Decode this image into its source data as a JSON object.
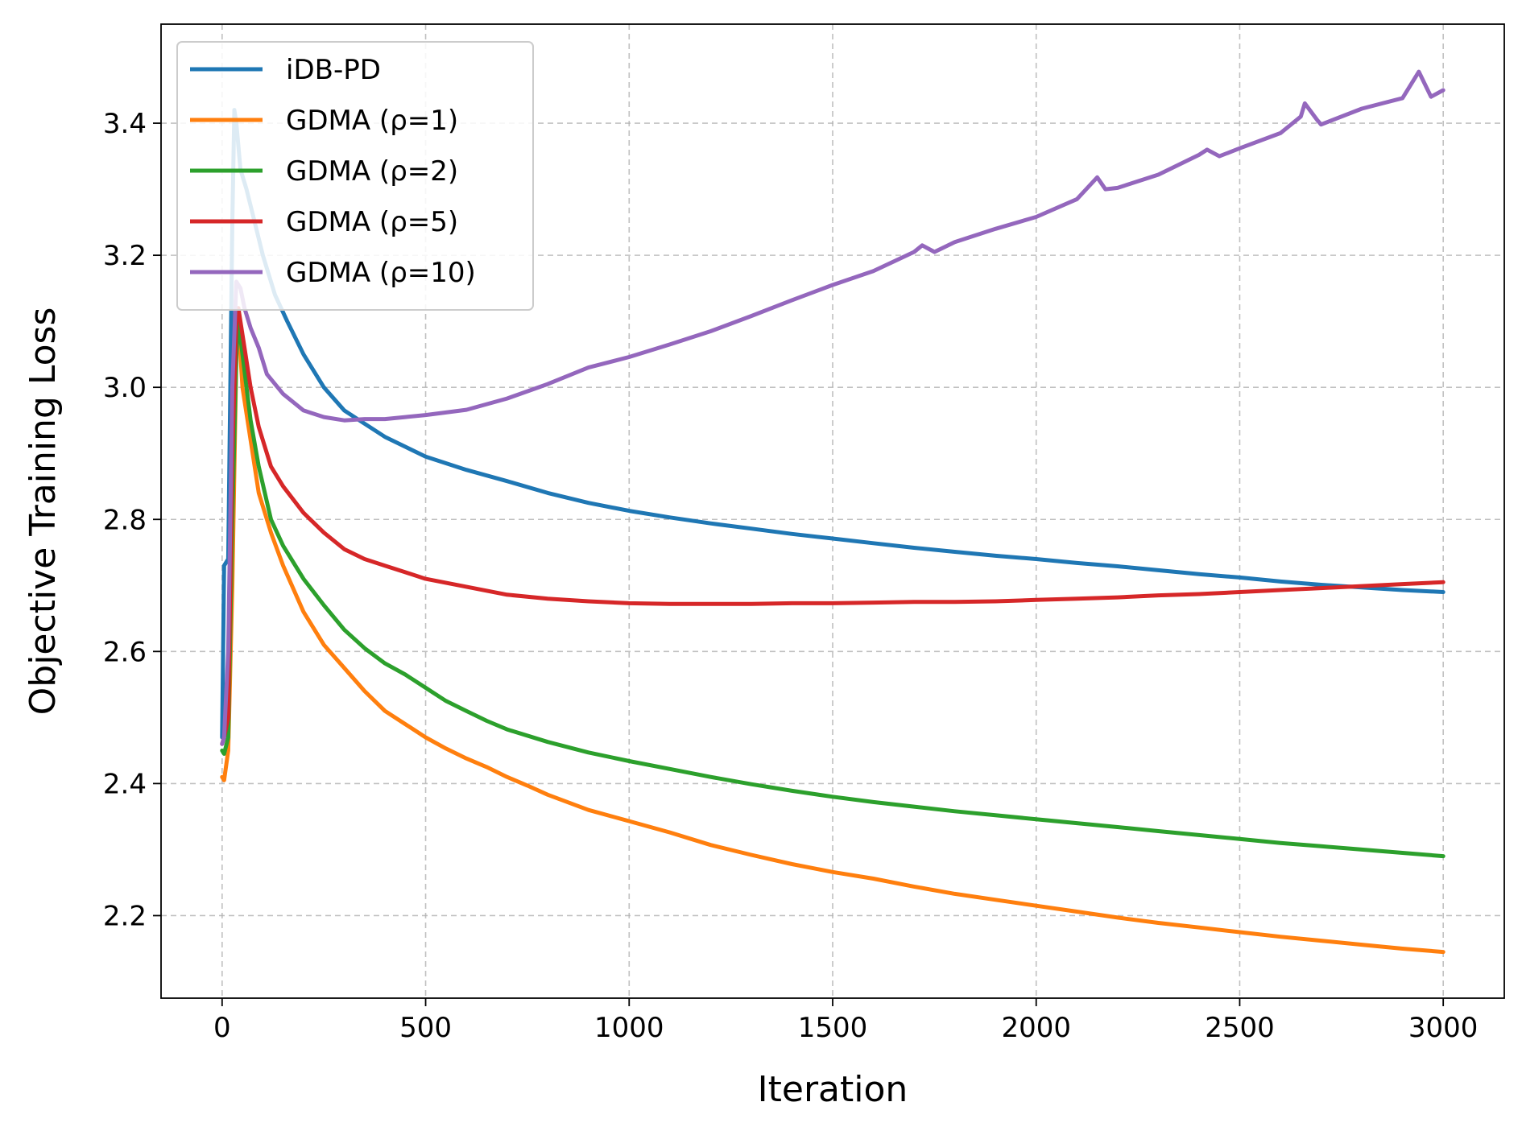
{
  "chart_data": {
    "type": "line",
    "title": "",
    "xlabel": "Iteration",
    "ylabel": "Objective Training Loss",
    "xlim": [
      -150,
      3150
    ],
    "ylim": [
      2.075,
      3.55
    ],
    "xticks": [
      0,
      500,
      1000,
      1500,
      2000,
      2500,
      3000
    ],
    "xtick_labels": [
      "0",
      "500",
      "1000",
      "1500",
      "2000",
      "2500",
      "3000"
    ],
    "yticks": [
      2.2,
      2.4,
      2.6,
      2.8,
      3.0,
      3.2,
      3.4
    ],
    "ytick_labels": [
      "2.2",
      "2.4",
      "2.6",
      "2.8",
      "3.0",
      "3.2",
      "3.4"
    ],
    "grid": true,
    "legend_position": "top-left",
    "series": [
      {
        "name": "iDB-PD",
        "color": "#1f77b4",
        "points": [
          [
            0,
            2.47
          ],
          [
            5,
            2.73
          ],
          [
            15,
            2.74
          ],
          [
            25,
            3.25
          ],
          [
            30,
            3.42
          ],
          [
            35,
            3.4
          ],
          [
            45,
            3.33
          ],
          [
            60,
            3.3
          ],
          [
            80,
            3.25
          ],
          [
            100,
            3.2
          ],
          [
            130,
            3.14
          ],
          [
            160,
            3.1
          ],
          [
            200,
            3.05
          ],
          [
            250,
            3.0
          ],
          [
            300,
            2.965
          ],
          [
            350,
            2.945
          ],
          [
            400,
            2.925
          ],
          [
            450,
            2.91
          ],
          [
            500,
            2.895
          ],
          [
            600,
            2.875
          ],
          [
            700,
            2.858
          ],
          [
            800,
            2.84
          ],
          [
            900,
            2.825
          ],
          [
            1000,
            2.813
          ],
          [
            1100,
            2.803
          ],
          [
            1200,
            2.794
          ],
          [
            1300,
            2.786
          ],
          [
            1400,
            2.778
          ],
          [
            1500,
            2.771
          ],
          [
            1600,
            2.764
          ],
          [
            1700,
            2.757
          ],
          [
            1800,
            2.751
          ],
          [
            1900,
            2.745
          ],
          [
            2000,
            2.74
          ],
          [
            2100,
            2.734
          ],
          [
            2200,
            2.729
          ],
          [
            2300,
            2.723
          ],
          [
            2400,
            2.717
          ],
          [
            2500,
            2.712
          ],
          [
            2600,
            2.706
          ],
          [
            2700,
            2.701
          ],
          [
            2800,
            2.697
          ],
          [
            2900,
            2.693
          ],
          [
            3000,
            2.69
          ]
        ]
      },
      {
        "name": "GDMA (ρ=1)",
        "color": "#ff7f0e",
        "points": [
          [
            0,
            2.41
          ],
          [
            5,
            2.405
          ],
          [
            15,
            2.45
          ],
          [
            25,
            2.7
          ],
          [
            35,
            3.05
          ],
          [
            40,
            3.1
          ],
          [
            50,
            3.0
          ],
          [
            70,
            2.92
          ],
          [
            90,
            2.84
          ],
          [
            120,
            2.78
          ],
          [
            150,
            2.73
          ],
          [
            200,
            2.66
          ],
          [
            250,
            2.61
          ],
          [
            300,
            2.575
          ],
          [
            350,
            2.54
          ],
          [
            400,
            2.51
          ],
          [
            450,
            2.49
          ],
          [
            500,
            2.47
          ],
          [
            550,
            2.453
          ],
          [
            600,
            2.438
          ],
          [
            650,
            2.425
          ],
          [
            700,
            2.41
          ],
          [
            750,
            2.397
          ],
          [
            800,
            2.383
          ],
          [
            900,
            2.36
          ],
          [
            1000,
            2.343
          ],
          [
            1100,
            2.326
          ],
          [
            1200,
            2.307
          ],
          [
            1300,
            2.292
          ],
          [
            1400,
            2.278
          ],
          [
            1500,
            2.266
          ],
          [
            1600,
            2.256
          ],
          [
            1700,
            2.244
          ],
          [
            1800,
            2.233
          ],
          [
            1900,
            2.224
          ],
          [
            2000,
            2.215
          ],
          [
            2100,
            2.206
          ],
          [
            2200,
            2.197
          ],
          [
            2300,
            2.189
          ],
          [
            2400,
            2.182
          ],
          [
            2500,
            2.175
          ],
          [
            2600,
            2.168
          ],
          [
            2700,
            2.162
          ],
          [
            2800,
            2.156
          ],
          [
            2900,
            2.15
          ],
          [
            3000,
            2.145
          ]
        ]
      },
      {
        "name": "GDMA (ρ=2)",
        "color": "#2ca02c",
        "points": [
          [
            0,
            2.45
          ],
          [
            5,
            2.445
          ],
          [
            15,
            2.47
          ],
          [
            25,
            2.8
          ],
          [
            35,
            3.05
          ],
          [
            40,
            3.1
          ],
          [
            50,
            3.05
          ],
          [
            70,
            2.95
          ],
          [
            90,
            2.88
          ],
          [
            120,
            2.8
          ],
          [
            150,
            2.76
          ],
          [
            200,
            2.71
          ],
          [
            250,
            2.67
          ],
          [
            300,
            2.633
          ],
          [
            350,
            2.605
          ],
          [
            400,
            2.582
          ],
          [
            450,
            2.565
          ],
          [
            500,
            2.545
          ],
          [
            550,
            2.525
          ],
          [
            600,
            2.51
          ],
          [
            650,
            2.495
          ],
          [
            700,
            2.482
          ],
          [
            800,
            2.463
          ],
          [
            900,
            2.447
          ],
          [
            1000,
            2.434
          ],
          [
            1100,
            2.422
          ],
          [
            1200,
            2.41
          ],
          [
            1300,
            2.399
          ],
          [
            1400,
            2.389
          ],
          [
            1500,
            2.38
          ],
          [
            1600,
            2.372
          ],
          [
            1700,
            2.365
          ],
          [
            1800,
            2.358
          ],
          [
            1900,
            2.352
          ],
          [
            2000,
            2.346
          ],
          [
            2100,
            2.34
          ],
          [
            2200,
            2.334
          ],
          [
            2300,
            2.328
          ],
          [
            2400,
            2.322
          ],
          [
            2500,
            2.316
          ],
          [
            2600,
            2.31
          ],
          [
            2700,
            2.305
          ],
          [
            2800,
            2.3
          ],
          [
            2900,
            2.295
          ],
          [
            3000,
            2.29
          ]
        ]
      },
      {
        "name": "GDMA (ρ=5)",
        "color": "#d62728",
        "points": [
          [
            0,
            2.46
          ],
          [
            5,
            2.47
          ],
          [
            15,
            2.5
          ],
          [
            25,
            2.9
          ],
          [
            35,
            3.1
          ],
          [
            40,
            3.12
          ],
          [
            50,
            3.08
          ],
          [
            70,
            3.0
          ],
          [
            90,
            2.94
          ],
          [
            120,
            2.88
          ],
          [
            150,
            2.85
          ],
          [
            200,
            2.81
          ],
          [
            250,
            2.78
          ],
          [
            300,
            2.755
          ],
          [
            350,
            2.74
          ],
          [
            400,
            2.73
          ],
          [
            450,
            2.72
          ],
          [
            500,
            2.71
          ],
          [
            600,
            2.698
          ],
          [
            700,
            2.686
          ],
          [
            800,
            2.68
          ],
          [
            900,
            2.676
          ],
          [
            1000,
            2.673
          ],
          [
            1100,
            2.672
          ],
          [
            1200,
            2.672
          ],
          [
            1300,
            2.672
          ],
          [
            1400,
            2.673
          ],
          [
            1500,
            2.673
          ],
          [
            1600,
            2.674
          ],
          [
            1700,
            2.675
          ],
          [
            1800,
            2.675
          ],
          [
            1900,
            2.676
          ],
          [
            2000,
            2.678
          ],
          [
            2100,
            2.68
          ],
          [
            2200,
            2.682
          ],
          [
            2300,
            2.685
          ],
          [
            2400,
            2.687
          ],
          [
            2500,
            2.69
          ],
          [
            2600,
            2.693
          ],
          [
            2700,
            2.696
          ],
          [
            2800,
            2.699
          ],
          [
            2900,
            2.702
          ],
          [
            3000,
            2.705
          ]
        ]
      },
      {
        "name": "GDMA (ρ=10)",
        "color": "#9467bd",
        "points": [
          [
            0,
            2.46
          ],
          [
            5,
            2.47
          ],
          [
            15,
            2.6
          ],
          [
            25,
            3.0
          ],
          [
            35,
            3.16
          ],
          [
            45,
            3.15
          ],
          [
            55,
            3.12
          ],
          [
            70,
            3.09
          ],
          [
            90,
            3.06
          ],
          [
            110,
            3.02
          ],
          [
            150,
            2.99
          ],
          [
            200,
            2.965
          ],
          [
            250,
            2.955
          ],
          [
            300,
            2.95
          ],
          [
            350,
            2.952
          ],
          [
            400,
            2.952
          ],
          [
            450,
            2.955
          ],
          [
            500,
            2.958
          ],
          [
            600,
            2.966
          ],
          [
            700,
            2.983
          ],
          [
            800,
            3.005
          ],
          [
            900,
            3.03
          ],
          [
            1000,
            3.046
          ],
          [
            1100,
            3.065
          ],
          [
            1200,
            3.085
          ],
          [
            1300,
            3.108
          ],
          [
            1400,
            3.132
          ],
          [
            1500,
            3.155
          ],
          [
            1600,
            3.176
          ],
          [
            1700,
            3.205
          ],
          [
            1720,
            3.215
          ],
          [
            1750,
            3.205
          ],
          [
            1800,
            3.22
          ],
          [
            1900,
            3.24
          ],
          [
            2000,
            3.258
          ],
          [
            2100,
            3.285
          ],
          [
            2150,
            3.318
          ],
          [
            2170,
            3.3
          ],
          [
            2200,
            3.302
          ],
          [
            2300,
            3.322
          ],
          [
            2400,
            3.352
          ],
          [
            2420,
            3.36
          ],
          [
            2450,
            3.35
          ],
          [
            2500,
            3.362
          ],
          [
            2600,
            3.385
          ],
          [
            2650,
            3.41
          ],
          [
            2660,
            3.43
          ],
          [
            2690,
            3.405
          ],
          [
            2700,
            3.398
          ],
          [
            2800,
            3.422
          ],
          [
            2900,
            3.438
          ],
          [
            2940,
            3.478
          ],
          [
            2970,
            3.44
          ],
          [
            3000,
            3.45
          ]
        ]
      }
    ]
  }
}
